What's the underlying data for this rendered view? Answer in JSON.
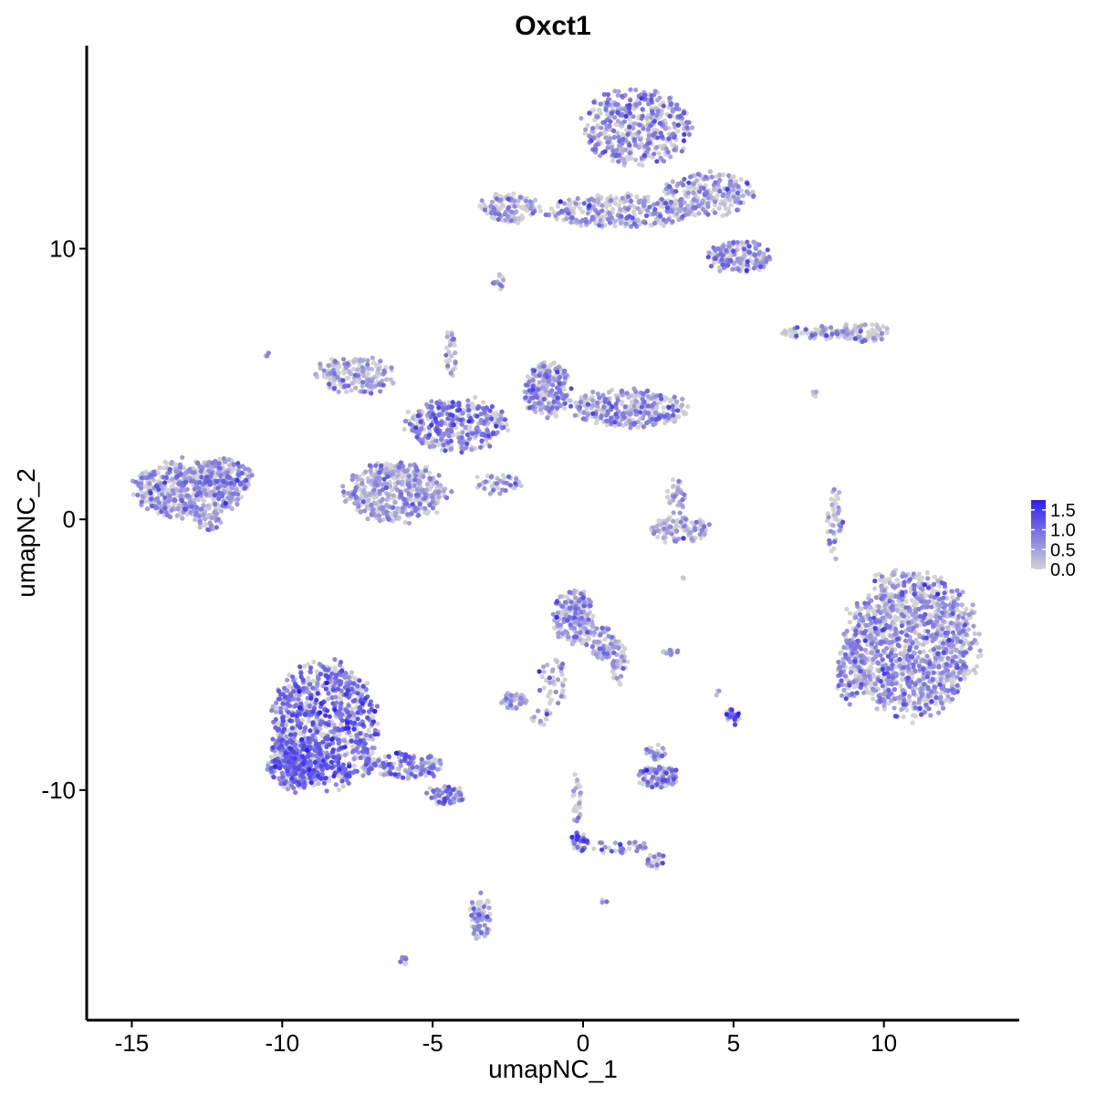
{
  "chart_data": {
    "type": "scatter",
    "title": "Oxct1",
    "xlabel": "umapNC_1",
    "ylabel": "umapNC_2",
    "xlim": [
      -16.5,
      14.5
    ],
    "ylim": [
      -18.5,
      17.5
    ],
    "x_ticks": [
      -15,
      -10,
      -5,
      0,
      5,
      10
    ],
    "x_tick_labels": [
      "-15",
      "-10",
      "-5",
      "0",
      "5",
      "10"
    ],
    "y_ticks": [
      -10,
      0,
      10
    ],
    "y_tick_labels": [
      "-10",
      "0",
      "10"
    ],
    "grid": false,
    "legend": {
      "placement": "right",
      "title": "",
      "range": [
        0,
        1.75
      ],
      "breaks": [
        0.0,
        0.5,
        1.0,
        1.5
      ],
      "break_labels": [
        "0.0",
        "0.5",
        "1.0",
        "1.5"
      ],
      "low_color": "#d3d3d3",
      "high_color": "#2c1ef0"
    },
    "clusters": [
      {
        "cx": -13.1,
        "cy": 1.1,
        "rx": 1.8,
        "ry": 1.1,
        "n": 520,
        "mean": 0.55
      },
      {
        "cx": -11.9,
        "cy": 1.6,
        "rx": 0.9,
        "ry": 0.7,
        "n": 140,
        "mean": 0.55
      },
      {
        "cx": -12.4,
        "cy": -0.1,
        "rx": 0.4,
        "ry": 0.3,
        "n": 25,
        "mean": 0.6
      },
      {
        "cx": -8.6,
        "cy": -7.6,
        "rx": 1.8,
        "ry": 2.3,
        "n": 900,
        "mean": 0.9
      },
      {
        "cx": -9.5,
        "cy": -9.0,
        "rx": 1.0,
        "ry": 1.0,
        "n": 300,
        "mean": 0.95
      },
      {
        "cx": -6.0,
        "cy": -9.1,
        "rx": 1.4,
        "ry": 0.5,
        "n": 160,
        "mean": 0.85
      },
      {
        "cx": -4.6,
        "cy": -10.2,
        "rx": 0.7,
        "ry": 0.35,
        "n": 60,
        "mean": 0.8
      },
      {
        "cx": -3.4,
        "cy": -14.7,
        "rx": 0.35,
        "ry": 0.9,
        "n": 70,
        "mean": 0.6
      },
      {
        "cx": -6.0,
        "cy": -16.3,
        "rx": 0.2,
        "ry": 0.15,
        "n": 8,
        "mean": 0.5
      },
      {
        "cx": -6.2,
        "cy": 1.0,
        "rx": 1.7,
        "ry": 1.1,
        "n": 500,
        "mean": 0.5
      },
      {
        "cx": -7.6,
        "cy": 5.3,
        "rx": 1.3,
        "ry": 0.7,
        "n": 180,
        "mean": 0.4
      },
      {
        "cx": -4.2,
        "cy": 3.5,
        "rx": 1.7,
        "ry": 1.0,
        "n": 350,
        "mean": 0.75
      },
      {
        "cx": -1.2,
        "cy": 4.8,
        "rx": 0.8,
        "ry": 1.0,
        "n": 240,
        "mean": 0.55
      },
      {
        "cx": 1.5,
        "cy": 4.1,
        "rx": 1.9,
        "ry": 0.7,
        "n": 330,
        "mean": 0.55
      },
      {
        "cx": -4.4,
        "cy": 6.2,
        "rx": 0.2,
        "ry": 1.0,
        "n": 30,
        "mean": 0.6
      },
      {
        "cx": -2.9,
        "cy": 1.3,
        "rx": 0.8,
        "ry": 0.4,
        "n": 40,
        "mean": 0.6
      },
      {
        "cx": 1.8,
        "cy": 14.5,
        "rx": 1.8,
        "ry": 1.4,
        "n": 460,
        "mean": 0.6
      },
      {
        "cx": 1.3,
        "cy": 11.4,
        "rx": 2.4,
        "ry": 0.6,
        "n": 300,
        "mean": 0.5
      },
      {
        "cx": -2.4,
        "cy": 11.5,
        "rx": 1.0,
        "ry": 0.6,
        "n": 110,
        "mean": 0.55
      },
      {
        "cx": 4.2,
        "cy": 12.0,
        "rx": 1.5,
        "ry": 0.8,
        "n": 240,
        "mean": 0.5
      },
      {
        "cx": 5.2,
        "cy": 9.7,
        "rx": 1.1,
        "ry": 0.6,
        "n": 170,
        "mean": 0.55
      },
      {
        "cx": -2.8,
        "cy": 8.7,
        "rx": 0.2,
        "ry": 0.3,
        "n": 10,
        "mean": 0.6
      },
      {
        "cx": 7.7,
        "cy": 6.9,
        "rx": 1.2,
        "ry": 0.25,
        "n": 60,
        "mean": 0.5
      },
      {
        "cx": 9.3,
        "cy": 6.9,
        "rx": 0.9,
        "ry": 0.35,
        "n": 80,
        "mean": 0.35
      },
      {
        "cx": 8.4,
        "cy": -0.2,
        "rx": 0.3,
        "ry": 1.3,
        "n": 45,
        "mean": 0.65
      },
      {
        "cx": 10.9,
        "cy": -4.6,
        "rx": 2.2,
        "ry": 2.7,
        "n": 1300,
        "mean": 0.55
      },
      {
        "cx": 8.9,
        "cy": -5.6,
        "rx": 0.5,
        "ry": 1.2,
        "n": 110,
        "mean": 0.6
      },
      {
        "cx": 3.2,
        "cy": -0.4,
        "rx": 1.0,
        "ry": 0.5,
        "n": 110,
        "mean": 0.4
      },
      {
        "cx": 3.1,
        "cy": 0.8,
        "rx": 0.3,
        "ry": 0.7,
        "n": 30,
        "mean": 0.4
      },
      {
        "cx": -0.3,
        "cy": -3.6,
        "rx": 0.7,
        "ry": 1.0,
        "n": 200,
        "mean": 0.45
      },
      {
        "cx": 0.6,
        "cy": -4.6,
        "rx": 0.6,
        "ry": 0.6,
        "n": 80,
        "mean": 0.5
      },
      {
        "cx": 1.2,
        "cy": -5.4,
        "rx": 0.3,
        "ry": 0.8,
        "n": 40,
        "mean": 0.55
      },
      {
        "cx": -1.0,
        "cy": -6.0,
        "rx": 0.5,
        "ry": 1.0,
        "n": 40,
        "mean": 0.3
      },
      {
        "cx": -2.3,
        "cy": -6.7,
        "rx": 0.45,
        "ry": 0.3,
        "n": 45,
        "mean": 0.4
      },
      {
        "cx": 2.5,
        "cy": -9.5,
        "rx": 0.8,
        "ry": 0.4,
        "n": 110,
        "mean": 0.65
      },
      {
        "cx": 2.4,
        "cy": -8.6,
        "rx": 0.4,
        "ry": 0.3,
        "n": 25,
        "mean": 0.5
      },
      {
        "cx": -0.1,
        "cy": -11.9,
        "rx": 0.3,
        "ry": 0.35,
        "n": 40,
        "mean": 1.1
      },
      {
        "cx": -0.2,
        "cy": -10.3,
        "rx": 0.15,
        "ry": 1.0,
        "n": 25,
        "mean": 0.75
      },
      {
        "cx": 1.2,
        "cy": -12.1,
        "rx": 1.0,
        "ry": 0.25,
        "n": 30,
        "mean": 0.7
      },
      {
        "cx": 2.4,
        "cy": -12.6,
        "rx": 0.3,
        "ry": 0.3,
        "n": 25,
        "mean": 0.6
      },
      {
        "cx": 5.0,
        "cy": -7.3,
        "rx": 0.3,
        "ry": 0.3,
        "n": 35,
        "mean": 1.05
      },
      {
        "cx": 2.9,
        "cy": -4.9,
        "rx": 0.3,
        "ry": 0.12,
        "n": 10,
        "mean": 0.6
      },
      {
        "cx": -1.3,
        "cy": -7.3,
        "rx": 0.4,
        "ry": 0.3,
        "n": 12,
        "mean": 0.5
      },
      {
        "cx": -10.5,
        "cy": 6.1,
        "rx": 0.1,
        "ry": 0.1,
        "n": 3,
        "mean": 0.5
      },
      {
        "cx": -2.7,
        "cy": 9.0,
        "rx": 0.1,
        "ry": 0.15,
        "n": 3,
        "mean": 0.3
      },
      {
        "cx": 7.7,
        "cy": 4.7,
        "rx": 0.1,
        "ry": 0.2,
        "n": 4,
        "mean": 0.3
      },
      {
        "cx": 0.7,
        "cy": -14.1,
        "rx": 0.1,
        "ry": 0.1,
        "n": 3,
        "mean": 0.4
      },
      {
        "cx": 4.5,
        "cy": -6.4,
        "rx": 0.2,
        "ry": 0.1,
        "n": 3,
        "mean": 0.3
      },
      {
        "cx": 3.3,
        "cy": -2.1,
        "rx": 0.1,
        "ry": 0.1,
        "n": 2,
        "mean": 0.2
      }
    ],
    "point_count_note": "",
    "series": []
  }
}
